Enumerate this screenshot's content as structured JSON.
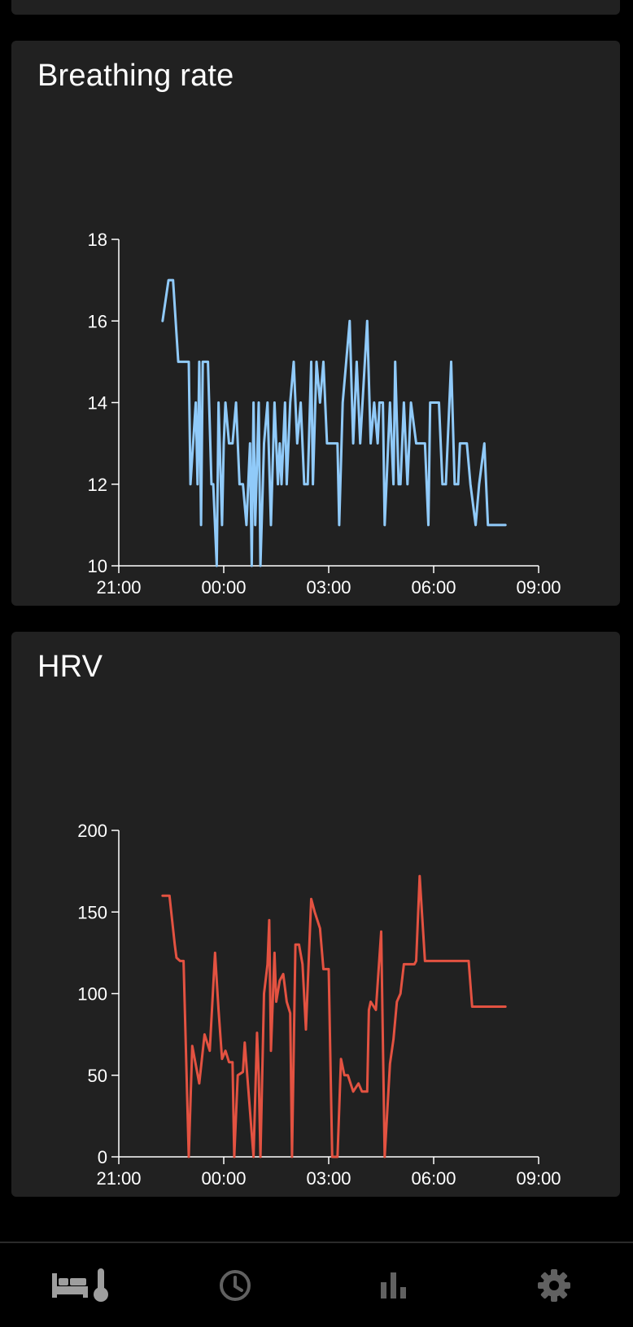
{
  "cards": [
    {
      "title": "Breathing rate"
    },
    {
      "title": "HRV"
    }
  ],
  "chart_data": [
    {
      "type": "line",
      "title": "Breathing rate",
      "color": "#90caf9",
      "xlim": [
        0,
        12
      ],
      "ylim": [
        10,
        18
      ],
      "x_ticks": [
        "21:00",
        "00:00",
        "03:00",
        "06:00",
        "09:00"
      ],
      "y_ticks": [
        "10",
        "12",
        "14",
        "16",
        "18"
      ],
      "x_tick_values": [
        0,
        3,
        6,
        9,
        12
      ],
      "y_tick_values": [
        10,
        12,
        14,
        16,
        18
      ],
      "grid": false,
      "series": [
        {
          "x": [
            1.25,
            1.42,
            1.55,
            1.7,
            1.75,
            2.0,
            2.05,
            2.2,
            2.25,
            2.3,
            2.35,
            2.4,
            2.45,
            2.5,
            2.55,
            2.65,
            2.7,
            2.8,
            2.85,
            2.95,
            3.0,
            3.05,
            3.15,
            3.25,
            3.35,
            3.45,
            3.55,
            3.65,
            3.75,
            3.8,
            3.85,
            3.9,
            4.0,
            4.05,
            4.15,
            4.25,
            4.35,
            4.45,
            4.55,
            4.6,
            4.65,
            4.75,
            4.8,
            4.9,
            5.0,
            5.1,
            5.2,
            5.3,
            5.35,
            5.4,
            5.5,
            5.55,
            5.65,
            5.75,
            5.85,
            5.95,
            6.05,
            6.15,
            6.25,
            6.3,
            6.4,
            6.5,
            6.6,
            6.7,
            6.8,
            6.9,
            7.1,
            7.2,
            7.3,
            7.4,
            7.45,
            7.55,
            7.6,
            7.65,
            7.75,
            7.85,
            7.9,
            8.0,
            8.05,
            8.15,
            8.25,
            8.35,
            8.5,
            8.65,
            8.75,
            8.85,
            8.9,
            9.0,
            9.05,
            9.15,
            9.25,
            9.35,
            9.5,
            9.6,
            9.7,
            9.75,
            9.95,
            10.05,
            10.2,
            10.3,
            10.45,
            10.55,
            10.65,
            10.75,
            10.8,
            10.9,
            10.95,
            11.05
          ],
          "y": [
            16,
            17,
            17,
            15,
            15,
            15,
            12,
            14,
            12,
            15,
            11,
            15,
            15,
            15,
            15,
            12,
            12,
            10,
            14,
            11,
            13,
            14,
            13,
            13,
            14,
            12,
            12,
            11,
            13,
            10,
            14,
            11,
            14,
            10,
            13,
            14,
            11,
            14,
            12,
            13,
            12,
            14,
            12,
            14,
            15,
            13,
            14,
            12,
            12,
            12,
            15,
            12,
            15,
            14,
            15,
            13,
            13,
            13,
            13,
            11,
            14,
            15,
            16,
            13,
            15,
            13,
            16,
            13,
            14,
            13,
            14,
            14,
            11,
            12,
            14,
            12,
            15,
            12,
            12,
            14,
            12,
            14,
            13,
            13,
            13,
            11,
            14,
            14,
            14,
            14,
            12,
            12,
            15,
            12,
            12,
            13,
            13,
            12,
            11,
            12,
            13,
            11,
            11,
            11,
            11,
            11,
            11,
            11
          ]
        }
      ]
    },
    {
      "type": "line",
      "title": "HRV",
      "color": "#e35241",
      "xlim": [
        0,
        12
      ],
      "ylim": [
        0,
        200
      ],
      "x_ticks": [
        "21:00",
        "00:00",
        "03:00",
        "06:00",
        "09:00"
      ],
      "y_ticks": [
        "0",
        "50",
        "100",
        "150",
        "200"
      ],
      "x_tick_values": [
        0,
        3,
        6,
        9,
        12
      ],
      "y_tick_values": [
        0,
        50,
        100,
        150,
        200
      ],
      "grid": false,
      "series": [
        {
          "x": [
            1.25,
            1.45,
            1.6,
            1.65,
            1.75,
            1.85,
            2.0,
            2.1,
            2.3,
            2.45,
            2.6,
            2.75,
            2.85,
            2.95,
            3.05,
            3.15,
            3.25,
            3.3,
            3.4,
            3.55,
            3.6,
            3.85,
            3.95,
            4.0,
            4.05,
            4.15,
            4.25,
            4.3,
            4.35,
            4.45,
            4.5,
            4.6,
            4.7,
            4.8,
            4.9,
            4.95,
            5.05,
            5.15,
            5.25,
            5.35,
            5.5,
            5.6,
            5.75,
            5.85,
            6.0,
            6.1,
            6.25,
            6.35,
            6.45,
            6.55,
            6.7,
            6.85,
            6.95,
            7.1,
            7.15,
            7.2,
            7.35,
            7.5,
            7.6,
            7.75,
            7.85,
            7.95,
            8.05,
            8.15,
            8.3,
            8.45,
            8.5,
            8.6,
            8.75,
            8.85,
            9.05,
            9.15,
            9.25,
            9.35,
            9.45,
            9.55,
            9.65,
            9.75,
            9.85,
            10.0,
            10.1,
            10.2,
            10.3,
            10.4,
            10.5,
            10.6,
            10.75,
            10.85,
            10.95,
            11.05
          ],
          "y": [
            160,
            160,
            130,
            122,
            120,
            120,
            0,
            68,
            45,
            75,
            65,
            125,
            90,
            60,
            65,
            58,
            58,
            0,
            50,
            52,
            70,
            0,
            76,
            50,
            0,
            100,
            118,
            145,
            65,
            125,
            95,
            108,
            112,
            95,
            88,
            0,
            130,
            130,
            118,
            78,
            158,
            150,
            140,
            115,
            115,
            0,
            0,
            60,
            50,
            50,
            40,
            45,
            40,
            40,
            90,
            95,
            90,
            138,
            0,
            57,
            72,
            95,
            100,
            118,
            118,
            118,
            120,
            172,
            120,
            120,
            120,
            120,
            120,
            120,
            120,
            120,
            120,
            120,
            120,
            120,
            92,
            92,
            92,
            92,
            92,
            92,
            92,
            92,
            92,
            92
          ]
        }
      ]
    }
  ],
  "nav": {
    "items": [
      {
        "icon": "bed-thermometer-icon",
        "active": true
      },
      {
        "icon": "clock-icon",
        "active": false
      },
      {
        "icon": "bar-chart-icon",
        "active": false
      },
      {
        "icon": "gear-icon",
        "active": false
      }
    ]
  }
}
